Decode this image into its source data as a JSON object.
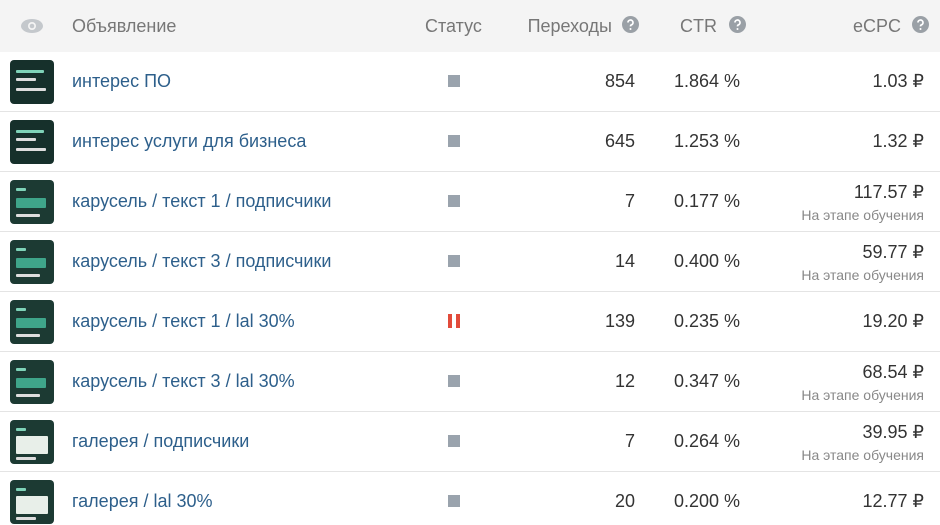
{
  "header": {
    "ad": "Объявление",
    "status": "Статус",
    "clicks": "Переходы",
    "ctr": "CTR",
    "ecpc": "eCPC"
  },
  "rows": [
    {
      "name": "интерес ПО",
      "clicks": "854",
      "ctr": "1.864 %",
      "ecpc": "1.03 ₽"
    },
    {
      "name": "интерес услуги для бизнеса",
      "clicks": "645",
      "ctr": "1.253 %",
      "ecpc": "1.32 ₽"
    },
    {
      "name": "карусель / текст 1 / подписчики",
      "clicks": "7",
      "ctr": "0.177 %",
      "ecpc": "117.57 ₽",
      "note": "На этапе обучения"
    },
    {
      "name": "карусель / текст 3 / подписчики",
      "clicks": "14",
      "ctr": "0.400 %",
      "ecpc": "59.77 ₽",
      "note": "На этапе обучения"
    },
    {
      "name": "карусель / текст 1 / lal 30%",
      "clicks": "139",
      "ctr": "0.235 %",
      "ecpc": "19.20 ₽"
    },
    {
      "name": "карусель / текст 3 / lal 30%",
      "clicks": "12",
      "ctr": "0.347 %",
      "ecpc": "68.54 ₽",
      "note": "На этапе обучения"
    },
    {
      "name": "галерея / подписчики",
      "clicks": "7",
      "ctr": "0.264 %",
      "ecpc": "39.95 ₽",
      "note": "На этапе обучения"
    },
    {
      "name": "галерея / lal 30%",
      "clicks": "20",
      "ctr": "0.200 %",
      "ecpc": "12.77 ₽"
    }
  ]
}
